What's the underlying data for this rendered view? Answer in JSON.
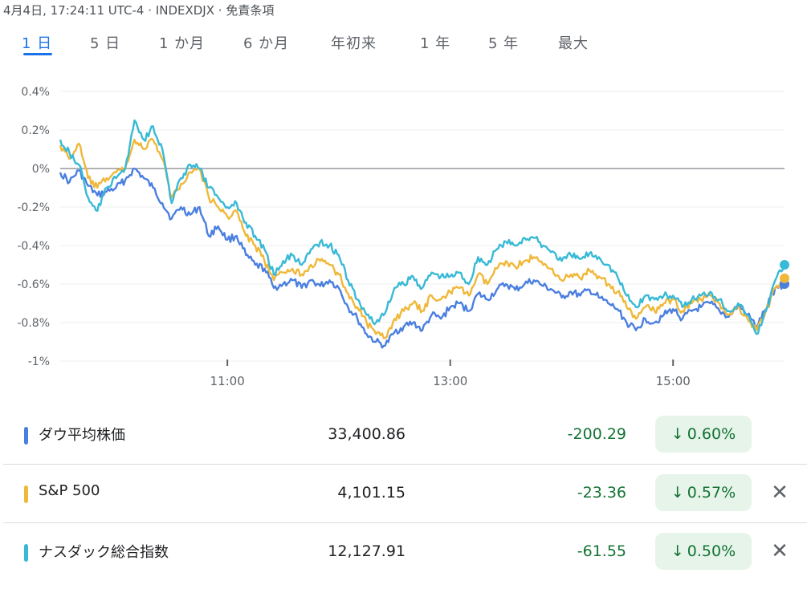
{
  "header": {
    "datetime": "4月4日, 17:24:11 UTC-4",
    "separator1": "·",
    "symbol": "INDEXDJX",
    "separator2": "·",
    "disclaimer": "免責条項"
  },
  "tabs": [
    {
      "label": "1 日",
      "active": true
    },
    {
      "label": "5 日",
      "active": false
    },
    {
      "label": "1 か月",
      "active": false
    },
    {
      "label": "6 か月",
      "active": false
    },
    {
      "label": "年初来",
      "active": false
    },
    {
      "label": "1 年",
      "active": false
    },
    {
      "label": "5 年",
      "active": false
    },
    {
      "label": "最大",
      "active": false
    }
  ],
  "chart_data": {
    "type": "line",
    "x_range": [
      "09:30",
      "16:00"
    ],
    "ylim": [
      -1.0,
      0.4
    ],
    "ytick_values": [
      0.4,
      0.2,
      0.0,
      -0.2,
      -0.4,
      -0.6,
      -0.8,
      -1.0
    ],
    "ytick_labels": [
      "0.4%",
      "0.2%",
      "0%",
      "-0.2%",
      "-0.4%",
      "-0.6%",
      "-0.8%",
      "-1%"
    ],
    "xtick_values": [
      "11:00",
      "13:00",
      "15:00"
    ],
    "xtick_labels": [
      "11:00",
      "13:00",
      "15:00"
    ],
    "grid": true,
    "baseline": 0.0,
    "series": [
      {
        "name": "ダウ平均株価",
        "color": "#4a7fe0",
        "points": [
          [
            "09:30",
            -0.02
          ],
          [
            "09:35",
            -0.07
          ],
          [
            "09:40",
            -0.01
          ],
          [
            "09:45",
            -0.09
          ],
          [
            "09:50",
            -0.14
          ],
          [
            "09:55",
            -0.12
          ],
          [
            "10:00",
            -0.1
          ],
          [
            "10:05",
            -0.06
          ],
          [
            "10:10",
            0.0
          ],
          [
            "10:15",
            -0.05
          ],
          [
            "10:20",
            -0.1
          ],
          [
            "10:25",
            -0.18
          ],
          [
            "10:30",
            -0.26
          ],
          [
            "10:35",
            -0.2
          ],
          [
            "10:40",
            -0.24
          ],
          [
            "10:45",
            -0.2
          ],
          [
            "10:50",
            -0.35
          ],
          [
            "10:55",
            -0.3
          ],
          [
            "11:00",
            -0.37
          ],
          [
            "11:05",
            -0.35
          ],
          [
            "11:10",
            -0.45
          ],
          [
            "11:15",
            -0.5
          ],
          [
            "11:20",
            -0.52
          ],
          [
            "11:25",
            -0.62
          ],
          [
            "11:30",
            -0.6
          ],
          [
            "11:35",
            -0.58
          ],
          [
            "11:40",
            -0.62
          ],
          [
            "11:45",
            -0.58
          ],
          [
            "11:50",
            -0.61
          ],
          [
            "11:55",
            -0.58
          ],
          [
            "12:00",
            -0.62
          ],
          [
            "12:05",
            -0.72
          ],
          [
            "12:10",
            -0.78
          ],
          [
            "12:15",
            -0.86
          ],
          [
            "12:20",
            -0.9
          ],
          [
            "12:25",
            -0.92
          ],
          [
            "12:30",
            -0.85
          ],
          [
            "12:35",
            -0.82
          ],
          [
            "12:40",
            -0.8
          ],
          [
            "12:45",
            -0.84
          ],
          [
            "12:50",
            -0.76
          ],
          [
            "12:55",
            -0.78
          ],
          [
            "13:00",
            -0.72
          ],
          [
            "13:05",
            -0.7
          ],
          [
            "13:10",
            -0.74
          ],
          [
            "13:15",
            -0.65
          ],
          [
            "13:20",
            -0.68
          ],
          [
            "13:25",
            -0.63
          ],
          [
            "13:30",
            -0.6
          ],
          [
            "13:35",
            -0.63
          ],
          [
            "13:40",
            -0.6
          ],
          [
            "13:45",
            -0.58
          ],
          [
            "13:50",
            -0.61
          ],
          [
            "13:55",
            -0.63
          ],
          [
            "14:00",
            -0.67
          ],
          [
            "14:05",
            -0.64
          ],
          [
            "14:10",
            -0.66
          ],
          [
            "14:15",
            -0.63
          ],
          [
            "14:20",
            -0.67
          ],
          [
            "14:25",
            -0.7
          ],
          [
            "14:30",
            -0.73
          ],
          [
            "14:35",
            -0.8
          ],
          [
            "14:40",
            -0.84
          ],
          [
            "14:45",
            -0.78
          ],
          [
            "14:50",
            -0.8
          ],
          [
            "14:55",
            -0.76
          ],
          [
            "15:00",
            -0.73
          ],
          [
            "15:05",
            -0.78
          ],
          [
            "15:10",
            -0.74
          ],
          [
            "15:15",
            -0.72
          ],
          [
            "15:20",
            -0.7
          ],
          [
            "15:25",
            -0.74
          ],
          [
            "15:30",
            -0.77
          ],
          [
            "15:35",
            -0.71
          ],
          [
            "15:40",
            -0.76
          ],
          [
            "15:45",
            -0.82
          ],
          [
            "15:50",
            -0.73
          ],
          [
            "15:55",
            -0.62
          ],
          [
            "16:00",
            -0.6
          ]
        ]
      },
      {
        "name": "S&P 500",
        "color": "#f0b83a",
        "points": [
          [
            "09:30",
            0.12
          ],
          [
            "09:35",
            0.05
          ],
          [
            "09:40",
            0.13
          ],
          [
            "09:45",
            -0.05
          ],
          [
            "09:50",
            -0.1
          ],
          [
            "09:55",
            -0.05
          ],
          [
            "10:00",
            -0.02
          ],
          [
            "10:05",
            0.0
          ],
          [
            "10:10",
            0.15
          ],
          [
            "10:15",
            0.1
          ],
          [
            "10:20",
            0.15
          ],
          [
            "10:25",
            0.05
          ],
          [
            "10:30",
            -0.15
          ],
          [
            "10:35",
            -0.08
          ],
          [
            "10:40",
            -0.02
          ],
          [
            "10:45",
            0.0
          ],
          [
            "10:50",
            -0.15
          ],
          [
            "10:55",
            -0.2
          ],
          [
            "11:00",
            -0.25
          ],
          [
            "11:05",
            -0.22
          ],
          [
            "11:10",
            -0.35
          ],
          [
            "11:15",
            -0.4
          ],
          [
            "11:20",
            -0.48
          ],
          [
            "11:25",
            -0.58
          ],
          [
            "11:30",
            -0.54
          ],
          [
            "11:35",
            -0.52
          ],
          [
            "11:40",
            -0.55
          ],
          [
            "11:45",
            -0.5
          ],
          [
            "11:50",
            -0.48
          ],
          [
            "11:55",
            -0.5
          ],
          [
            "12:00",
            -0.55
          ],
          [
            "12:05",
            -0.65
          ],
          [
            "12:10",
            -0.72
          ],
          [
            "12:15",
            -0.8
          ],
          [
            "12:20",
            -0.86
          ],
          [
            "12:25",
            -0.88
          ],
          [
            "12:30",
            -0.78
          ],
          [
            "12:35",
            -0.74
          ],
          [
            "12:40",
            -0.7
          ],
          [
            "12:45",
            -0.74
          ],
          [
            "12:50",
            -0.66
          ],
          [
            "12:55",
            -0.68
          ],
          [
            "13:00",
            -0.64
          ],
          [
            "13:05",
            -0.62
          ],
          [
            "13:10",
            -0.66
          ],
          [
            "13:15",
            -0.55
          ],
          [
            "13:20",
            -0.6
          ],
          [
            "13:25",
            -0.52
          ],
          [
            "13:30",
            -0.48
          ],
          [
            "13:35",
            -0.51
          ],
          [
            "13:40",
            -0.48
          ],
          [
            "13:45",
            -0.46
          ],
          [
            "13:50",
            -0.5
          ],
          [
            "13:55",
            -0.52
          ],
          [
            "14:00",
            -0.58
          ],
          [
            "14:05",
            -0.55
          ],
          [
            "14:10",
            -0.57
          ],
          [
            "14:15",
            -0.53
          ],
          [
            "14:20",
            -0.56
          ],
          [
            "14:25",
            -0.6
          ],
          [
            "14:30",
            -0.64
          ],
          [
            "14:35",
            -0.72
          ],
          [
            "14:40",
            -0.78
          ],
          [
            "14:45",
            -0.72
          ],
          [
            "14:50",
            -0.74
          ],
          [
            "14:55",
            -0.7
          ],
          [
            "15:00",
            -0.68
          ],
          [
            "15:05",
            -0.74
          ],
          [
            "15:10",
            -0.7
          ],
          [
            "15:15",
            -0.68
          ],
          [
            "15:20",
            -0.66
          ],
          [
            "15:25",
            -0.7
          ],
          [
            "15:30",
            -0.76
          ],
          [
            "15:35",
            -0.72
          ],
          [
            "15:40",
            -0.78
          ],
          [
            "15:45",
            -0.84
          ],
          [
            "15:50",
            -0.74
          ],
          [
            "15:55",
            -0.62
          ],
          [
            "16:00",
            -0.57
          ]
        ]
      },
      {
        "name": "ナスダック総合指数",
        "color": "#38b9d6",
        "points": [
          [
            "09:30",
            0.15
          ],
          [
            "09:35",
            0.08
          ],
          [
            "09:40",
            0.02
          ],
          [
            "09:45",
            -0.15
          ],
          [
            "09:50",
            -0.22
          ],
          [
            "09:55",
            -0.1
          ],
          [
            "10:00",
            -0.05
          ],
          [
            "10:05",
            0.0
          ],
          [
            "10:10",
            0.25
          ],
          [
            "10:15",
            0.15
          ],
          [
            "10:20",
            0.22
          ],
          [
            "10:25",
            0.1
          ],
          [
            "10:30",
            -0.18
          ],
          [
            "10:35",
            -0.05
          ],
          [
            "10:40",
            0.02
          ],
          [
            "10:45",
            0.0
          ],
          [
            "10:50",
            -0.1
          ],
          [
            "10:55",
            -0.15
          ],
          [
            "11:00",
            -0.2
          ],
          [
            "11:05",
            -0.18
          ],
          [
            "11:10",
            -0.28
          ],
          [
            "11:15",
            -0.35
          ],
          [
            "11:20",
            -0.42
          ],
          [
            "11:25",
            -0.55
          ],
          [
            "11:30",
            -0.48
          ],
          [
            "11:35",
            -0.45
          ],
          [
            "11:40",
            -0.5
          ],
          [
            "11:45",
            -0.42
          ],
          [
            "11:50",
            -0.38
          ],
          [
            "11:55",
            -0.4
          ],
          [
            "12:00",
            -0.45
          ],
          [
            "12:05",
            -0.58
          ],
          [
            "12:10",
            -0.68
          ],
          [
            "12:15",
            -0.76
          ],
          [
            "12:20",
            -0.8
          ],
          [
            "12:25",
            -0.75
          ],
          [
            "12:30",
            -0.62
          ],
          [
            "12:35",
            -0.6
          ],
          [
            "12:40",
            -0.56
          ],
          [
            "12:45",
            -0.62
          ],
          [
            "12:50",
            -0.54
          ],
          [
            "12:55",
            -0.56
          ],
          [
            "13:00",
            -0.56
          ],
          [
            "13:05",
            -0.54
          ],
          [
            "13:10",
            -0.6
          ],
          [
            "13:15",
            -0.46
          ],
          [
            "13:20",
            -0.5
          ],
          [
            "13:25",
            -0.42
          ],
          [
            "13:30",
            -0.38
          ],
          [
            "13:35",
            -0.4
          ],
          [
            "13:40",
            -0.36
          ],
          [
            "13:45",
            -0.36
          ],
          [
            "13:50",
            -0.4
          ],
          [
            "13:55",
            -0.43
          ],
          [
            "14:00",
            -0.48
          ],
          [
            "14:05",
            -0.45
          ],
          [
            "14:10",
            -0.47
          ],
          [
            "14:15",
            -0.44
          ],
          [
            "14:20",
            -0.46
          ],
          [
            "14:25",
            -0.5
          ],
          [
            "14:30",
            -0.56
          ],
          [
            "14:35",
            -0.66
          ],
          [
            "14:40",
            -0.72
          ],
          [
            "14:45",
            -0.66
          ],
          [
            "14:50",
            -0.68
          ],
          [
            "14:55",
            -0.66
          ],
          [
            "15:00",
            -0.66
          ],
          [
            "15:05",
            -0.72
          ],
          [
            "15:10",
            -0.68
          ],
          [
            "15:15",
            -0.66
          ],
          [
            "15:20",
            -0.64
          ],
          [
            "15:25",
            -0.68
          ],
          [
            "15:30",
            -0.74
          ],
          [
            "15:35",
            -0.7
          ],
          [
            "15:40",
            -0.76
          ],
          [
            "15:45",
            -0.86
          ],
          [
            "15:50",
            -0.74
          ],
          [
            "15:55",
            -0.58
          ],
          [
            "16:00",
            -0.5
          ]
        ]
      }
    ]
  },
  "rows": [
    {
      "color": "#4a7fe0",
      "name": "ダウ平均株価",
      "price": "33,400.86",
      "change": "-200.29",
      "arrow": "↓",
      "pct": "0.60%",
      "removable": false,
      "remove_label": ""
    },
    {
      "color": "#f0b83a",
      "name": "S&P 500",
      "price": "4,101.15",
      "change": "-23.36",
      "arrow": "↓",
      "pct": "0.57%",
      "removable": true,
      "remove_label": "✕"
    },
    {
      "color": "#38b9d6",
      "name": "ナスダック総合指数",
      "price": "12,127.91",
      "change": "-61.55",
      "arrow": "↓",
      "pct": "0.50%",
      "removable": true,
      "remove_label": "✕"
    }
  ],
  "icons": {
    "down_arrow": "down-arrow-icon",
    "remove": "close-icon"
  }
}
